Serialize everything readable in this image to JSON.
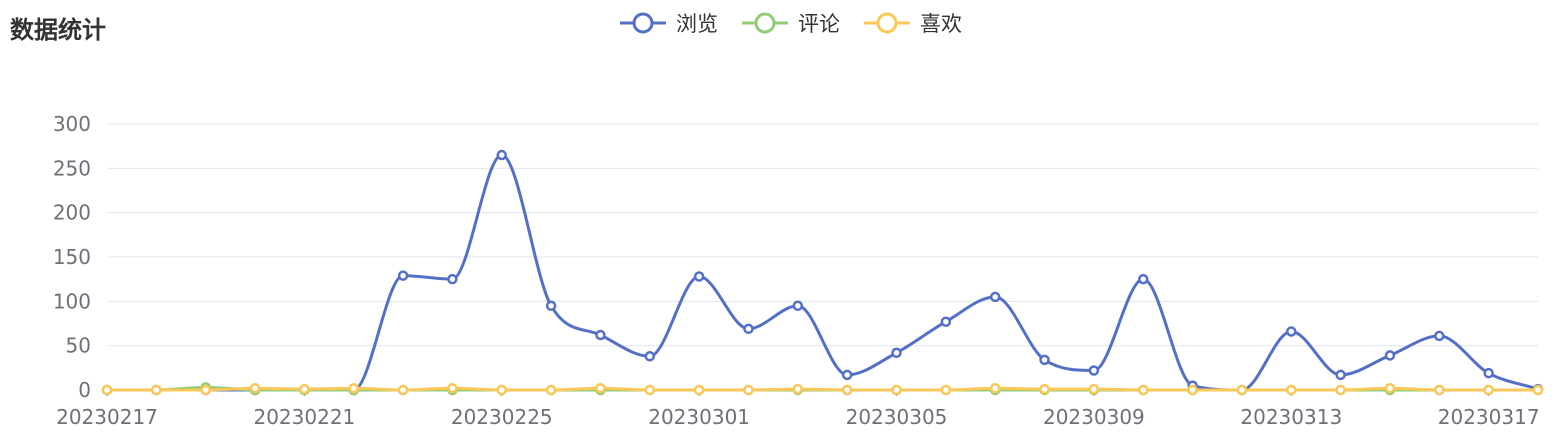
{
  "page_title": "数据统计",
  "chart_data": {
    "type": "line",
    "title": "",
    "xlabel": "",
    "ylabel": "",
    "ylim": [
      0,
      300
    ],
    "yticks": [
      0,
      50,
      100,
      150,
      200,
      250,
      300
    ],
    "grid": true,
    "legend_position": "top-center",
    "smooth": true,
    "x": [
      "20230217",
      "20230218",
      "20230219",
      "20230220",
      "20230221",
      "20230222",
      "20230223",
      "20230224",
      "20230225",
      "20230226",
      "20230227",
      "20230228",
      "20230301",
      "20230302",
      "20230303",
      "20230304",
      "20230305",
      "20230306",
      "20230307",
      "20230308",
      "20230309",
      "20230310",
      "20230311",
      "20230312",
      "20230313",
      "20230314",
      "20230315",
      "20230316",
      "20230317",
      "20230318"
    ],
    "x_tick_labels": [
      "20230217",
      "20230221",
      "20230225",
      "20230301",
      "20230305",
      "20230309",
      "20230313",
      "20230317"
    ],
    "series": [
      {
        "name": "浏览",
        "color": "#5470c6",
        "values": [
          0,
          0,
          0,
          0,
          0,
          0,
          129,
          125,
          265,
          95,
          62,
          38,
          128,
          69,
          95,
          17,
          42,
          77,
          105,
          34,
          22,
          125,
          5,
          0,
          66,
          17,
          39,
          61,
          19,
          1
        ]
      },
      {
        "name": "评论",
        "color": "#91cc75",
        "values": [
          0,
          0,
          3,
          0,
          0,
          0,
          0,
          0,
          0,
          0,
          0,
          0,
          0,
          0,
          0,
          0,
          0,
          0,
          0,
          0,
          0,
          0,
          0,
          0,
          0,
          0,
          0,
          0,
          0,
          0
        ]
      },
      {
        "name": "喜欢",
        "color": "#fac858",
        "values": [
          0,
          0,
          0,
          2,
          1,
          2,
          0,
          2,
          0,
          0,
          2,
          0,
          0,
          0,
          1,
          0,
          0,
          0,
          2,
          1,
          1,
          0,
          0,
          0,
          0,
          0,
          2,
          0,
          0,
          0
        ]
      }
    ]
  }
}
